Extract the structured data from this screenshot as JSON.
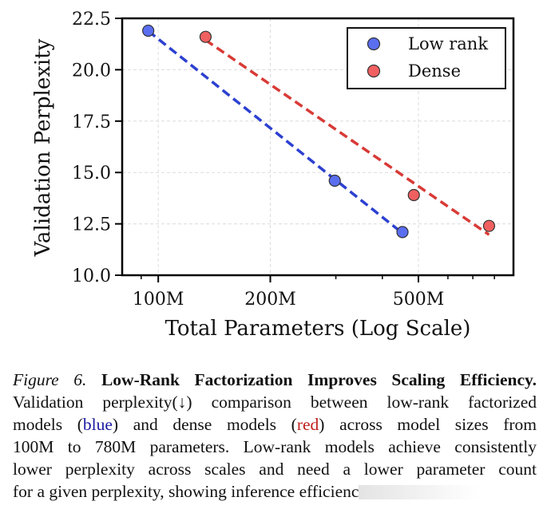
{
  "chart_data": {
    "type": "scatter",
    "title": "",
    "xlabel": "Total Parameters (Log Scale)",
    "ylabel": "Validation Perplexity",
    "xscale": "log",
    "xlim": [
      80,
      900
    ],
    "ylim": [
      10.0,
      22.5
    ],
    "yticks": [
      10.0,
      12.5,
      15.0,
      17.5,
      20.0,
      22.5
    ],
    "ytick_labels": [
      "10.0",
      "12.5",
      "15.0",
      "17.5",
      "20.0",
      "22.5"
    ],
    "xticks_major": [
      100,
      200,
      500
    ],
    "xtick_labels": [
      "100M",
      "200M",
      "500M"
    ],
    "xticks_minor": [
      90,
      300,
      400,
      600,
      700,
      800
    ],
    "grid": true,
    "legend_position": "top-right",
    "x_units": "M parameters",
    "series": [
      {
        "name": "Low rank",
        "color": "#5a6ef0",
        "line_color": "#2c40d0",
        "x": [
          94,
          298,
          453
        ],
        "y": [
          21.9,
          14.6,
          12.1
        ],
        "fit_line": "dashed"
      },
      {
        "name": "Dense",
        "color": "#f06060",
        "line_color": "#d83a36",
        "x": [
          134,
          486,
          774
        ],
        "y": [
          21.6,
          13.9,
          12.4
        ],
        "fit_line": "dashed"
      }
    ]
  },
  "caption": {
    "figure_label": "Figure 6.",
    "title": "Low-Rank Factorization Improves Scaling Efficiency.",
    "line2": "Validation perplexity(↓) comparison between low-rank factorized",
    "line3_a": "models (",
    "line3_blue": "blue",
    "line3_b": ") and dense models (",
    "line3_red": "red",
    "line3_c": ") across model sizes from",
    "line4": "100M to 780M parameters. Low-rank models achieve consistently",
    "line5": "lower perplexity across scales and need a lower parameter count",
    "line6": "for a given perplexity, showing inference efficienc"
  }
}
